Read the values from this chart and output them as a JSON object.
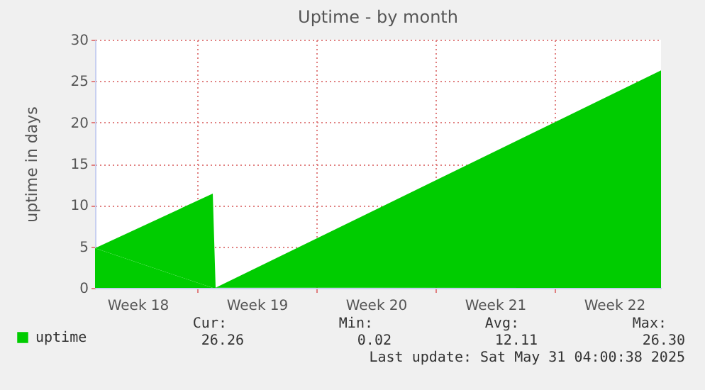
{
  "chart_data": {
    "type": "area",
    "title": "Uptime - by month",
    "ylabel": "uptime in days",
    "x": [
      "2025-04-29T00:00",
      "2025-05-05T22:00",
      "2025-05-06T02:00",
      "2025-06-01T06:00"
    ],
    "series": [
      {
        "name": "uptime",
        "color": "#00cc00",
        "values": [
          4.8,
          11.4,
          0.02,
          26.3
        ]
      }
    ],
    "xlim": [
      "2025-04-29T00:00",
      "2025-06-01T06:00"
    ],
    "xticks": [
      {
        "value": "2025-05-01T12:00",
        "label": "Week 18"
      },
      {
        "value": "2025-05-05T00:00",
        "label": null
      },
      {
        "value": "2025-05-08T12:00",
        "label": "Week 19"
      },
      {
        "value": "2025-05-12T00:00",
        "label": null
      },
      {
        "value": "2025-05-15T12:00",
        "label": "Week 20"
      },
      {
        "value": "2025-05-19T00:00",
        "label": null
      },
      {
        "value": "2025-05-22T12:00",
        "label": "Week 21"
      },
      {
        "value": "2025-05-26T00:00",
        "label": null
      },
      {
        "value": "2025-05-29T12:00",
        "label": "Week 22"
      }
    ],
    "ylim": [
      0,
      30
    ],
    "yticks": [
      0,
      5,
      10,
      15,
      20,
      25,
      30
    ],
    "grid": true,
    "legend": "bottom left",
    "annotations": [
      "Cur:",
      "Min:",
      "Avg:",
      "Max:",
      "26.26",
      "0.02",
      "12.11",
      "26.30",
      "Last update: Sat May 31 04:00:38 2025"
    ]
  }
}
